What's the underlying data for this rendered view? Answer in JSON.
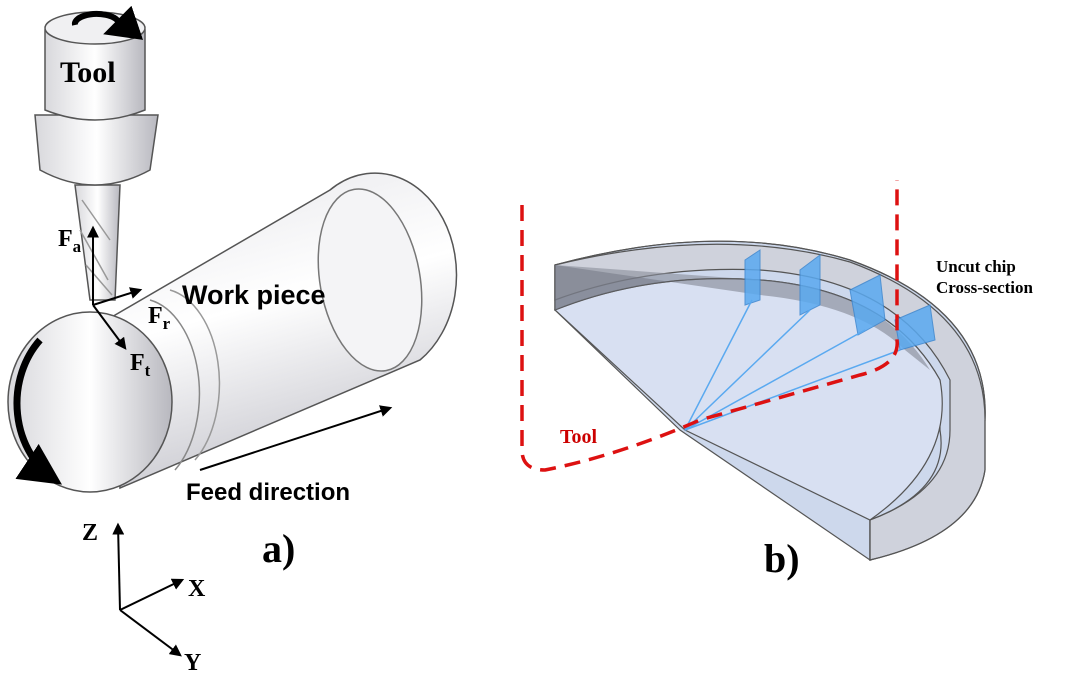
{
  "panel_a": {
    "tool_label": "Tool",
    "workpiece_label": "Work piece",
    "forces": [
      {
        "symbol": "F",
        "subscript": "a"
      },
      {
        "symbol": "F",
        "subscript": "r"
      },
      {
        "symbol": "F",
        "subscript": "t"
      }
    ],
    "feed_label": "Feed direction",
    "axes": {
      "z": "Z",
      "x": "X",
      "y": "Y"
    },
    "caption": "a)"
  },
  "panel_b": {
    "tool_label": "Tool",
    "chip_label": [
      "Uncut chip",
      "Cross-section"
    ],
    "caption": "b)"
  }
}
